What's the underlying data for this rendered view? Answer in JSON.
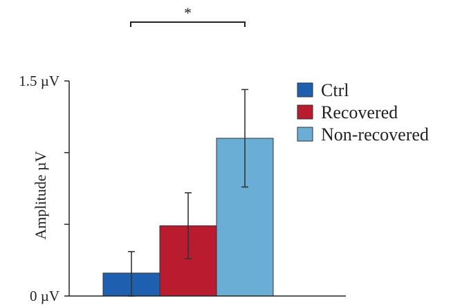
{
  "chart_data": {
    "type": "bar",
    "ylabel": "Amplitude µV",
    "ylim": [
      0,
      1.5
    ],
    "y_tick_labels": [
      "0 µV",
      "1.5 µV"
    ],
    "y_tick_values": [
      0,
      1.5
    ],
    "y_minor_ticks": [
      0.5,
      1.0
    ],
    "series": [
      {
        "name": "Ctrl",
        "value": 0.16,
        "error_low": 0.0,
        "error_high": 0.31,
        "color": "#1f5fb0"
      },
      {
        "name": "Recovered",
        "value": 0.49,
        "error_low": 0.26,
        "error_high": 0.72,
        "color": "#b81c2e"
      },
      {
        "name": "Non-recovered",
        "value": 1.1,
        "error_low": 0.76,
        "error_high": 1.44,
        "color": "#6aaed6"
      }
    ],
    "significance": {
      "label": "*",
      "between": [
        "Ctrl",
        "Non-recovered"
      ]
    },
    "legend_position": "top-right"
  }
}
